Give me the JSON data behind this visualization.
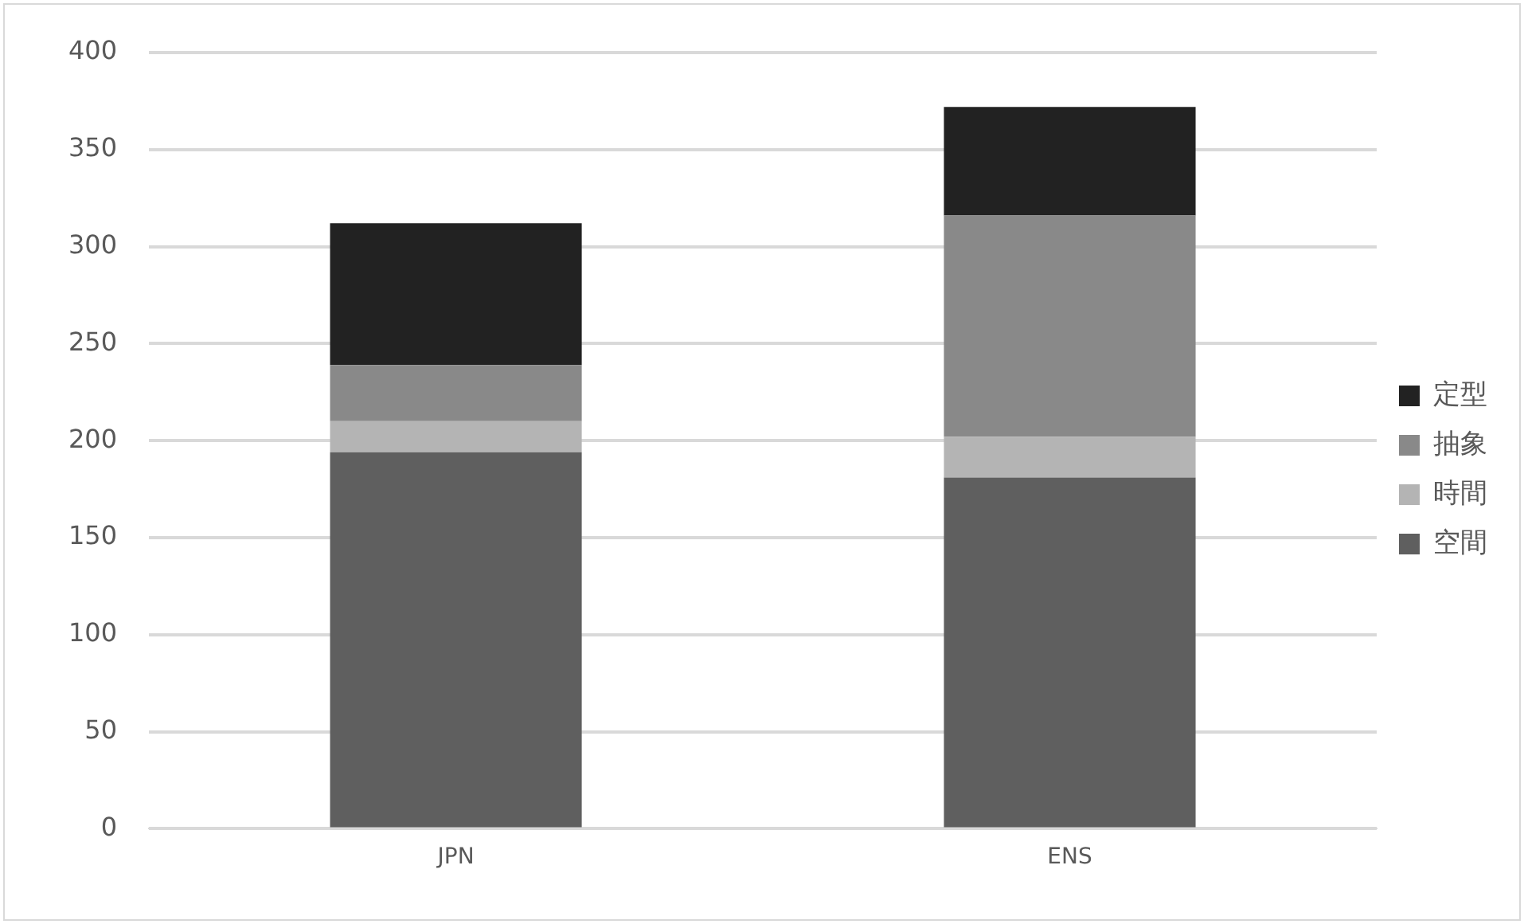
{
  "chart_data": {
    "type": "bar",
    "stacked": true,
    "categories": [
      "JPN",
      "ENS"
    ],
    "series": [
      {
        "name": "空間",
        "color": "#5f5f5f",
        "values": [
          194,
          181
        ]
      },
      {
        "name": "時間",
        "color": "#b4b4b4",
        "values": [
          16,
          21
        ]
      },
      {
        "name": "抽象",
        "color": "#898989",
        "values": [
          29,
          114
        ]
      },
      {
        "name": "定型",
        "color": "#222222",
        "values": [
          73,
          56
        ]
      }
    ],
    "ylim": [
      0,
      400
    ],
    "yticks": [
      0,
      50,
      100,
      150,
      200,
      250,
      300,
      350,
      400
    ],
    "grid": "y",
    "legend": "right"
  }
}
